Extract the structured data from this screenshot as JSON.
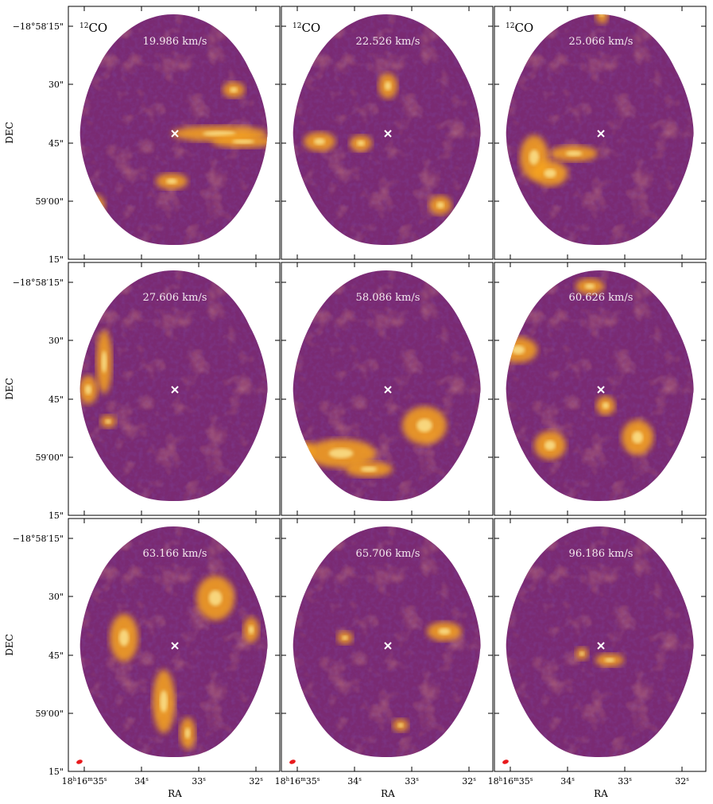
{
  "figure": {
    "molecule_label": "12CO",
    "molecule_sup": "12",
    "molecule_base": "CO",
    "xlabel": "RA",
    "ylabel": "DEC",
    "dec_tick_labels": [
      "−18°58′15\"",
      "30\"",
      "45\"",
      "59′00\"",
      "15\""
    ],
    "ra_tick_labels": [
      "18h16m35s",
      "34s",
      "33s",
      "32s"
    ],
    "panels": [
      {
        "velocity": "19.986 km/s",
        "show_molecule": true,
        "beam": false
      },
      {
        "velocity": "22.526 km/s",
        "show_molecule": true,
        "beam": false
      },
      {
        "velocity": "25.066 km/s",
        "show_molecule": true,
        "beam": false
      },
      {
        "velocity": "27.606 km/s",
        "show_molecule": false,
        "beam": false
      },
      {
        "velocity": "58.086 km/s",
        "show_molecule": false,
        "beam": false
      },
      {
        "velocity": "60.626 km/s",
        "show_molecule": false,
        "beam": false
      },
      {
        "velocity": "63.166 km/s",
        "show_molecule": false,
        "beam": true
      },
      {
        "velocity": "65.706 km/s",
        "show_molecule": false,
        "beam": true
      },
      {
        "velocity": "96.186 km/s",
        "show_molecule": false,
        "beam": true
      }
    ]
  },
  "colors": {
    "map_base": "#7a2a72",
    "map_dark": "#2c0f57",
    "map_mid": "#c84a50",
    "map_bright": "#f8a51c",
    "map_peak": "#fff2a0",
    "marker": "#ffffff",
    "beam": "#e8191c"
  }
}
